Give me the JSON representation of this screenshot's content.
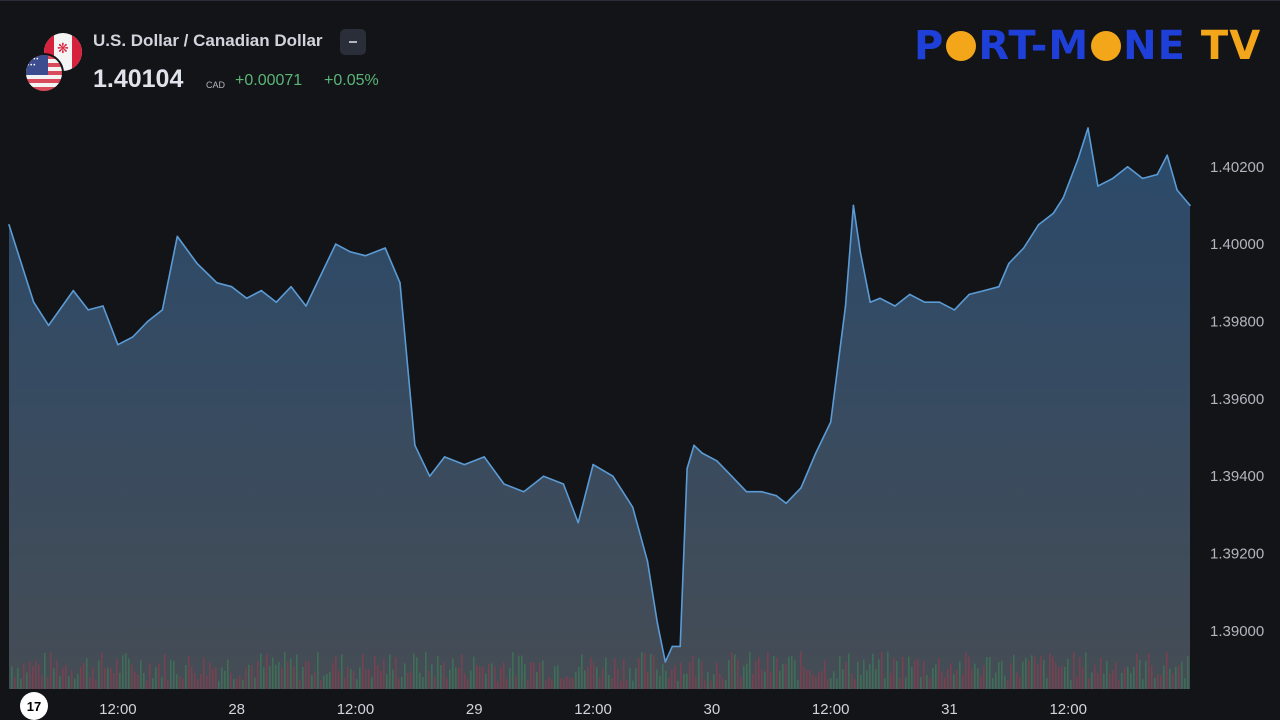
{
  "header": {
    "title": "U.S. Dollar / Canadian Dollar",
    "price": "1.40104",
    "currency": "CAD",
    "change": "+0.00071",
    "change_pct": "+0.05%"
  },
  "logo": {
    "part1": "P",
    "part2": "RT-M",
    "part3": "NE",
    "part4": "TV"
  },
  "colors": {
    "background": "#121417",
    "line": "#5b9bd5",
    "area_top": "#2a4a6b",
    "area_bottom": "#454c55",
    "up_volume": "#3e7a57",
    "down_volume": "#8a3e4e",
    "positive": "#5bb578"
  },
  "chart_data": {
    "type": "area",
    "title": "U.S. Dollar / Canadian Dollar",
    "ylim": [
      1.3885,
      1.4037
    ],
    "y_ticks": [
      "1.39000",
      "1.39200",
      "1.39400",
      "1.39600",
      "1.39800",
      "1.40000",
      "1.40200"
    ],
    "x_ticks": [
      "12:00",
      "28",
      "12:00",
      "29",
      "12:00",
      "30",
      "12:00",
      "31",
      "12:00"
    ],
    "x_tick_hours": [
      12,
      24,
      36,
      48,
      60,
      72,
      84,
      96,
      108
    ],
    "x_range_hours": [
      1.0,
      120.3
    ],
    "grid": false,
    "series": [
      {
        "x_hours": [
          1.0,
          3.5,
          5.0,
          7.5,
          9.0,
          10.5,
          12.0,
          13.5,
          15.0,
          16.5,
          18.0,
          20.0,
          22.0,
          23.5,
          25.0,
          26.5,
          28.0,
          29.5,
          31.0,
          32.5,
          34.0,
          35.5,
          37.0,
          39.0,
          40.5,
          42.0,
          43.5,
          45.0,
          47.0,
          49.0,
          51.0,
          53.0,
          55.0,
          57.0,
          58.5,
          60.0,
          62.0,
          64.0,
          65.5,
          66.5,
          67.3,
          68.0,
          68.8,
          69.5,
          70.2,
          71.0,
          72.5,
          74.0,
          75.5,
          77.0,
          78.5,
          79.5,
          81.0,
          82.5,
          84.0,
          85.5,
          86.3,
          87.0,
          88.0,
          89.0,
          90.5,
          92.0,
          93.5,
          95.0,
          96.5,
          98.0,
          99.5,
          101.0,
          102.0,
          103.5,
          105.0,
          106.5,
          107.5,
          109.0,
          110.0,
          111.0,
          112.5,
          114.0,
          115.5,
          117.0,
          118.0,
          119.0,
          120.3
        ],
        "values": [
          1.4005,
          1.3985,
          1.3979,
          1.3988,
          1.3983,
          1.3984,
          1.3974,
          1.3976,
          1.398,
          1.3983,
          1.4002,
          1.3995,
          1.399,
          1.3989,
          1.3986,
          1.3988,
          1.3985,
          1.3989,
          1.3984,
          1.3992,
          1.4,
          1.3998,
          1.3997,
          1.3999,
          1.399,
          1.3948,
          1.394,
          1.3945,
          1.3943,
          1.3945,
          1.3938,
          1.3936,
          1.394,
          1.3938,
          1.3928,
          1.3943,
          1.394,
          1.3932,
          1.3918,
          1.3902,
          1.3892,
          1.3896,
          1.3896,
          1.3942,
          1.3948,
          1.3946,
          1.3944,
          1.394,
          1.3936,
          1.3936,
          1.3935,
          1.3933,
          1.3937,
          1.3946,
          1.3954,
          1.3984,
          1.401,
          1.3998,
          1.3985,
          1.3986,
          1.3984,
          1.3987,
          1.3985,
          1.3985,
          1.3983,
          1.3987,
          1.3988,
          1.3989,
          1.3995,
          1.3999,
          1.4005,
          1.4008,
          1.4012,
          1.4022,
          1.403,
          1.4015,
          1.4017,
          1.402,
          1.4017,
          1.4018,
          1.4023,
          1.4014,
          1.401
        ]
      }
    ]
  }
}
